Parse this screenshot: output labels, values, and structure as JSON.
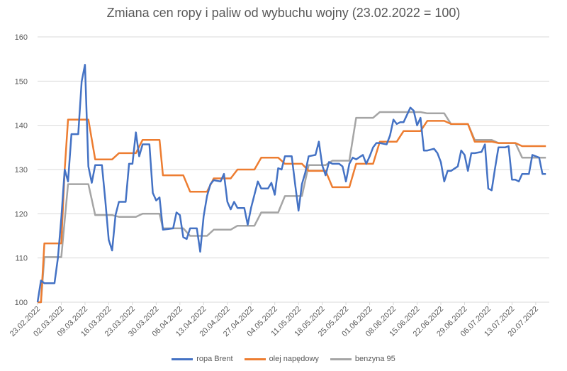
{
  "chart_data": {
    "type": "line",
    "title": "Zmiana cen ropy i paliw od wybuchu wojny (23.02.2022 = 100)",
    "xlabel": "",
    "ylabel": "",
    "ylim": [
      100,
      160
    ],
    "yticks": [
      100,
      110,
      120,
      130,
      140,
      150,
      160
    ],
    "x_range": [
      "23.02.2022",
      "24.07.2022"
    ],
    "xticks": [
      "23.02.2022",
      "02.03.2022",
      "09.03.2022",
      "16.03.2022",
      "23.03.2022",
      "30.03.2022",
      "06.04.2022",
      "13.04.2022",
      "20.04.2022",
      "27.04.2022",
      "04.05.2022",
      "11.05.2022",
      "18.05.2022",
      "25.05.2022",
      "01.06.2022",
      "08.06.2022",
      "15.06.2022",
      "22.06.2022",
      "29.06.2022",
      "06.07.2022",
      "13.07.2022",
      "20.07.2022"
    ],
    "grid": true,
    "legend_position": "bottom",
    "series": [
      {
        "name": "ropa Brent",
        "color": "#4472C4",
        "points": [
          [
            "23.02.2022",
            100.0
          ],
          [
            "24.02.2022",
            104.9
          ],
          [
            "25.02.2022",
            104.3
          ],
          [
            "28.02.2022",
            104.3
          ],
          [
            "01.03.2022",
            110.0
          ],
          [
            "02.03.2022",
            119.0
          ],
          [
            "03.03.2022",
            130.0
          ],
          [
            "04.03.2022",
            127.3
          ],
          [
            "05.03.2022",
            138.0
          ],
          [
            "07.03.2022",
            138.0
          ],
          [
            "08.03.2022",
            149.9
          ],
          [
            "09.03.2022",
            153.7
          ],
          [
            "10.03.2022",
            130.7
          ],
          [
            "11.03.2022",
            127.0
          ],
          [
            "12.03.2022",
            131.0
          ],
          [
            "14.03.2022",
            131.0
          ],
          [
            "15.03.2022",
            123.0
          ],
          [
            "16.03.2022",
            114.1
          ],
          [
            "17.03.2022",
            111.7
          ],
          [
            "18.03.2022",
            119.7
          ],
          [
            "19.03.2022",
            122.7
          ],
          [
            "21.03.2022",
            122.7
          ],
          [
            "22.03.2022",
            131.3
          ],
          [
            "23.03.2022",
            131.3
          ],
          [
            "24.03.2022",
            138.4
          ],
          [
            "25.03.2022",
            133.0
          ],
          [
            "26.03.2022",
            135.7
          ],
          [
            "28.03.2022",
            135.7
          ],
          [
            "29.03.2022",
            124.7
          ],
          [
            "30.03.2022",
            123.0
          ],
          [
            "31.03.2022",
            123.7
          ],
          [
            "01.04.2022",
            116.4
          ],
          [
            "04.04.2022",
            116.7
          ],
          [
            "05.04.2022",
            120.3
          ],
          [
            "06.04.2022",
            119.7
          ],
          [
            "07.04.2022",
            114.7
          ],
          [
            "08.04.2022",
            114.3
          ],
          [
            "09.04.2022",
            116.7
          ],
          [
            "11.04.2022",
            116.7
          ],
          [
            "12.04.2022",
            111.4
          ],
          [
            "13.04.2022",
            119.4
          ],
          [
            "14.04.2022",
            124.0
          ],
          [
            "15.04.2022",
            126.7
          ],
          [
            "16.04.2022",
            127.6
          ],
          [
            "18.04.2022",
            127.3
          ],
          [
            "19.04.2022",
            129.0
          ],
          [
            "20.04.2022",
            122.7
          ],
          [
            "21.04.2022",
            121.0
          ],
          [
            "22.04.2022",
            122.7
          ],
          [
            "23.04.2022",
            121.3
          ],
          [
            "25.04.2022",
            121.3
          ],
          [
            "26.04.2022",
            117.5
          ],
          [
            "27.04.2022",
            121.3
          ],
          [
            "28.04.2022",
            124.3
          ],
          [
            "29.04.2022",
            127.3
          ],
          [
            "30.04.2022",
            125.7
          ],
          [
            "02.05.2022",
            125.7
          ],
          [
            "03.05.2022",
            127.0
          ],
          [
            "04.05.2022",
            124.3
          ],
          [
            "05.05.2022",
            130.3
          ],
          [
            "06.05.2022",
            130.0
          ],
          [
            "07.05.2022",
            133.0
          ],
          [
            "09.05.2022",
            133.0
          ],
          [
            "10.05.2022",
            126.7
          ],
          [
            "11.05.2022",
            120.7
          ],
          [
            "12.05.2022",
            126.7
          ],
          [
            "13.05.2022",
            129.3
          ],
          [
            "14.05.2022",
            133.0
          ],
          [
            "16.05.2022",
            133.3
          ],
          [
            "17.05.2022",
            136.3
          ],
          [
            "18.05.2022",
            131.0
          ],
          [
            "19.05.2022",
            128.7
          ],
          [
            "20.05.2022",
            131.7
          ],
          [
            "21.05.2022",
            131.3
          ],
          [
            "23.05.2022",
            131.3
          ],
          [
            "24.05.2022",
            130.7
          ],
          [
            "25.05.2022",
            127.3
          ],
          [
            "26.05.2022",
            131.3
          ],
          [
            "27.05.2022",
            132.7
          ],
          [
            "28.05.2022",
            132.3
          ],
          [
            "30.05.2022",
            133.3
          ],
          [
            "31.05.2022",
            131.3
          ],
          [
            "01.06.2022",
            133.0
          ],
          [
            "02.06.2022",
            135.0
          ],
          [
            "03.06.2022",
            136.0
          ],
          [
            "04.06.2022",
            136.0
          ],
          [
            "06.06.2022",
            135.7
          ],
          [
            "07.06.2022",
            137.7
          ],
          [
            "08.06.2022",
            141.3
          ],
          [
            "09.06.2022",
            140.3
          ],
          [
            "10.06.2022",
            140.7
          ],
          [
            "11.06.2022",
            140.7
          ],
          [
            "13.06.2022",
            144.0
          ],
          [
            "14.06.2022",
            143.3
          ],
          [
            "15.06.2022",
            140.0
          ],
          [
            "16.06.2022",
            141.7
          ],
          [
            "17.06.2022",
            134.3
          ],
          [
            "18.06.2022",
            134.3
          ],
          [
            "20.06.2022",
            134.7
          ],
          [
            "21.06.2022",
            133.7
          ],
          [
            "22.06.2022",
            131.7
          ],
          [
            "23.06.2022",
            127.3
          ],
          [
            "24.06.2022",
            129.7
          ],
          [
            "25.06.2022",
            129.7
          ],
          [
            "27.06.2022",
            130.7
          ],
          [
            "28.06.2022",
            134.3
          ],
          [
            "29.06.2022",
            133.3
          ],
          [
            "30.06.2022",
            129.7
          ],
          [
            "01.07.2022",
            133.7
          ],
          [
            "02.07.2022",
            133.7
          ],
          [
            "04.07.2022",
            134.0
          ],
          [
            "05.07.2022",
            135.7
          ],
          [
            "06.07.2022",
            125.7
          ],
          [
            "07.07.2022",
            125.3
          ],
          [
            "08.07.2022",
            130.3
          ],
          [
            "09.07.2022",
            135.0
          ],
          [
            "11.07.2022",
            135.0
          ],
          [
            "12.07.2022",
            135.3
          ],
          [
            "13.07.2022",
            127.7
          ],
          [
            "14.07.2022",
            127.7
          ],
          [
            "15.07.2022",
            127.3
          ],
          [
            "16.07.2022",
            129.0
          ],
          [
            "18.07.2022",
            129.0
          ],
          [
            "19.07.2022",
            133.3
          ],
          [
            "20.07.2022",
            133.0
          ],
          [
            "21.07.2022",
            132.7
          ],
          [
            "22.07.2022",
            129.0
          ],
          [
            "23.07.2022",
            129.0
          ]
        ]
      },
      {
        "name": "olej napędowy",
        "color": "#ED7D31",
        "points": [
          [
            "23.02.2022",
            100.0
          ],
          [
            "24.02.2022",
            100.0
          ],
          [
            "25.02.2022",
            113.3
          ],
          [
            "02.03.2022",
            113.3
          ],
          [
            "03.03.2022",
            130.0
          ],
          [
            "04.03.2022",
            141.3
          ],
          [
            "09.03.2022",
            141.3
          ],
          [
            "10.03.2022",
            141.3
          ],
          [
            "12.03.2022",
            132.3
          ],
          [
            "17.03.2022",
            132.3
          ],
          [
            "19.03.2022",
            133.7
          ],
          [
            "24.03.2022",
            133.7
          ],
          [
            "26.03.2022",
            136.7
          ],
          [
            "31.03.2022",
            136.7
          ],
          [
            "01.04.2022",
            128.7
          ],
          [
            "07.04.2022",
            128.7
          ],
          [
            "09.04.2022",
            125.0
          ],
          [
            "14.04.2022",
            125.0
          ],
          [
            "16.04.2022",
            128.0
          ],
          [
            "21.04.2022",
            128.0
          ],
          [
            "23.04.2022",
            130.0
          ],
          [
            "28.04.2022",
            130.0
          ],
          [
            "30.04.2022",
            132.7
          ],
          [
            "05.05.2022",
            132.7
          ],
          [
            "07.05.2022",
            131.3
          ],
          [
            "12.05.2022",
            131.3
          ],
          [
            "14.05.2022",
            129.7
          ],
          [
            "19.05.2022",
            129.7
          ],
          [
            "21.05.2022",
            126.0
          ],
          [
            "26.05.2022",
            126.0
          ],
          [
            "28.05.2022",
            131.3
          ],
          [
            "02.06.2022",
            131.3
          ],
          [
            "04.06.2022",
            136.3
          ],
          [
            "09.06.2022",
            136.3
          ],
          [
            "11.06.2022",
            138.7
          ],
          [
            "16.06.2022",
            138.7
          ],
          [
            "18.06.2022",
            141.0
          ],
          [
            "23.06.2022",
            141.0
          ],
          [
            "25.06.2022",
            140.3
          ],
          [
            "30.06.2022",
            140.3
          ],
          [
            "02.07.2022",
            136.3
          ],
          [
            "07.07.2022",
            136.3
          ],
          [
            "09.07.2022",
            136.0
          ],
          [
            "14.07.2022",
            136.0
          ],
          [
            "16.07.2022",
            135.3
          ],
          [
            "23.07.2022",
            135.3
          ]
        ]
      },
      {
        "name": "benzyna 95",
        "color": "#A5A5A5",
        "points": [
          [
            "23.02.2022",
            100.0
          ],
          [
            "24.02.2022",
            100.0
          ],
          [
            "25.02.2022",
            110.2
          ],
          [
            "02.03.2022",
            110.2
          ],
          [
            "04.03.2022",
            126.7
          ],
          [
            "09.03.2022",
            126.7
          ],
          [
            "10.03.2022",
            126.7
          ],
          [
            "12.03.2022",
            119.7
          ],
          [
            "17.03.2022",
            119.7
          ],
          [
            "19.03.2022",
            119.3
          ],
          [
            "24.03.2022",
            119.3
          ],
          [
            "26.03.2022",
            120.0
          ],
          [
            "31.03.2022",
            120.0
          ],
          [
            "01.04.2022",
            116.7
          ],
          [
            "07.04.2022",
            116.7
          ],
          [
            "09.04.2022",
            115.0
          ],
          [
            "14.04.2022",
            115.0
          ],
          [
            "16.04.2022",
            116.4
          ],
          [
            "21.04.2022",
            116.4
          ],
          [
            "23.04.2022",
            117.3
          ],
          [
            "28.04.2022",
            117.3
          ],
          [
            "30.04.2022",
            120.3
          ],
          [
            "05.05.2022",
            120.3
          ],
          [
            "07.05.2022",
            124.0
          ],
          [
            "12.05.2022",
            124.0
          ],
          [
            "14.05.2022",
            131.0
          ],
          [
            "19.05.2022",
            131.0
          ],
          [
            "21.05.2022",
            132.0
          ],
          [
            "26.05.2022",
            132.0
          ],
          [
            "28.05.2022",
            141.7
          ],
          [
            "02.06.2022",
            141.7
          ],
          [
            "04.06.2022",
            143.0
          ],
          [
            "09.06.2022",
            143.0
          ],
          [
            "11.06.2022",
            143.0
          ],
          [
            "16.06.2022",
            143.0
          ],
          [
            "18.06.2022",
            142.7
          ],
          [
            "23.06.2022",
            142.7
          ],
          [
            "25.06.2022",
            140.3
          ],
          [
            "30.06.2022",
            140.3
          ],
          [
            "02.07.2022",
            136.7
          ],
          [
            "07.07.2022",
            136.7
          ],
          [
            "09.07.2022",
            136.0
          ],
          [
            "14.07.2022",
            136.0
          ],
          [
            "16.07.2022",
            132.7
          ],
          [
            "23.07.2022",
            132.7
          ]
        ]
      }
    ]
  }
}
